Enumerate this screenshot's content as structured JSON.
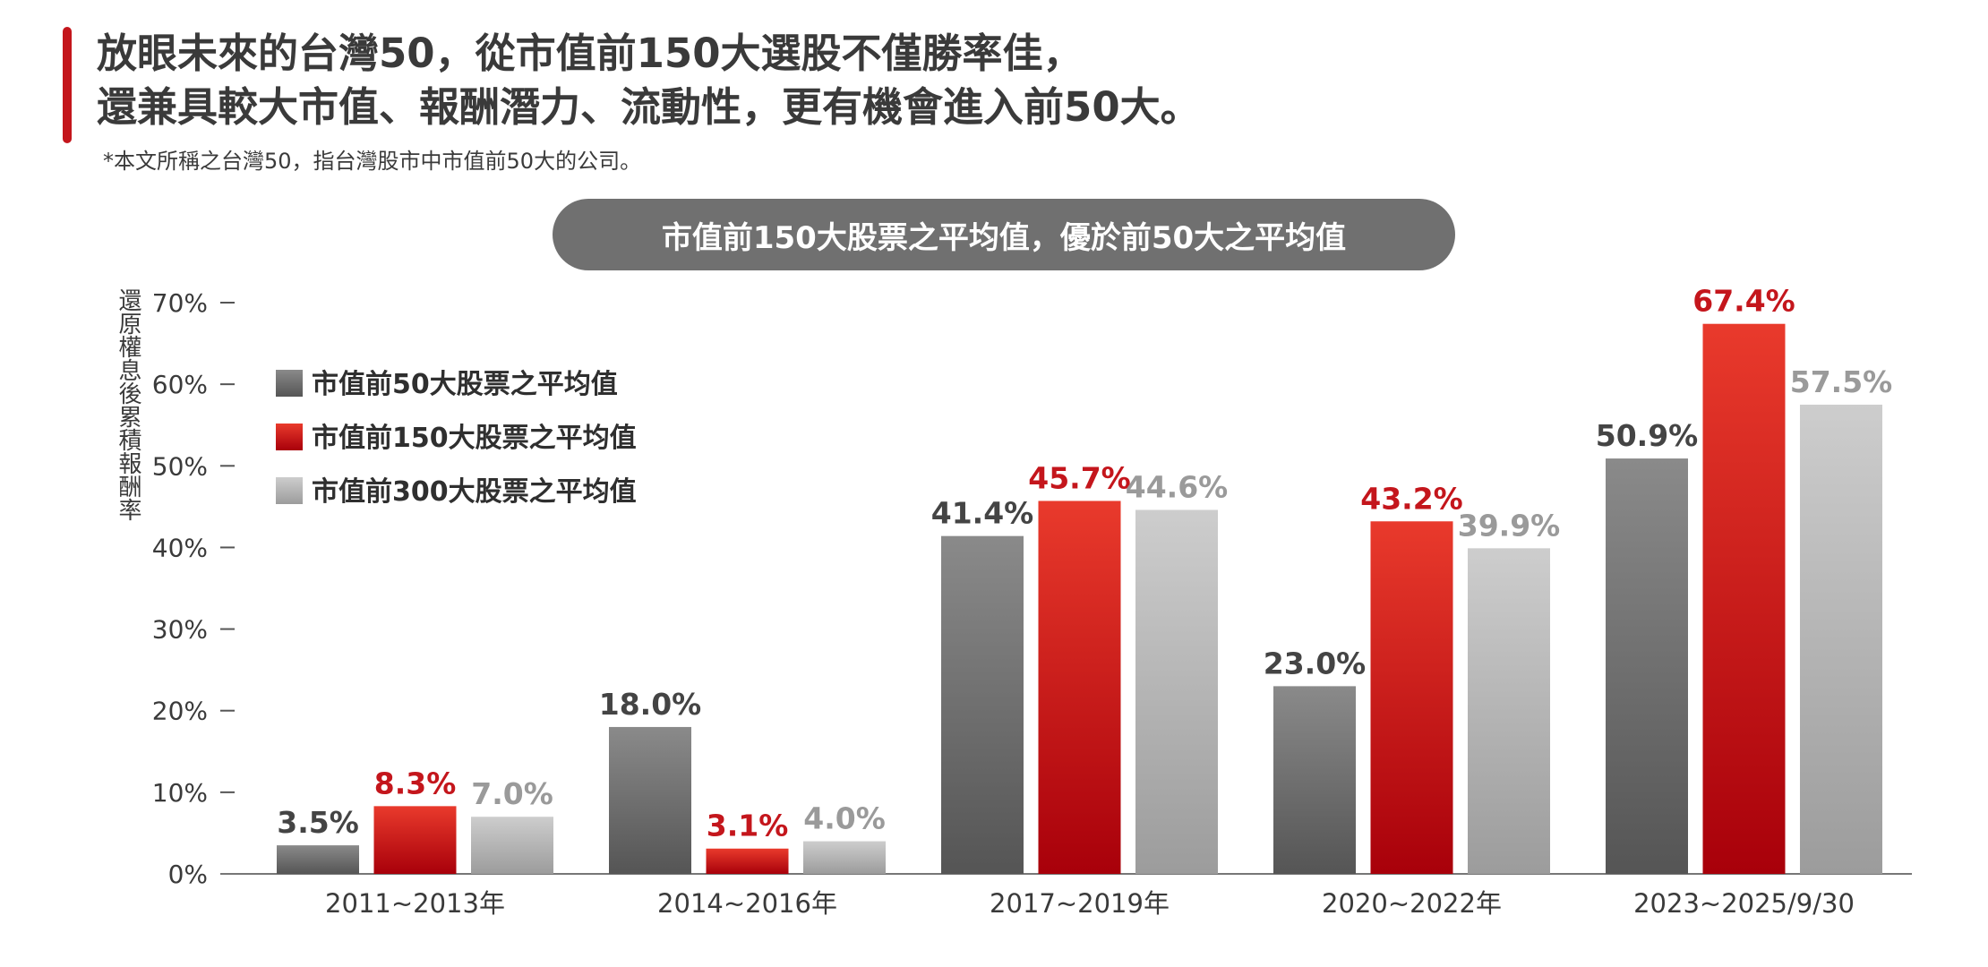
{
  "header": {
    "title_line1": "放眼未來的台灣50，從市值前150大選股不僅勝率佳，",
    "title_line2": "還兼具較大市值、報酬潛力、流動性，更有機會進入前50大。",
    "footnote": "*本文所稱之台灣50，指台灣股市中市值前50大的公司。"
  },
  "chart_data": {
    "type": "bar",
    "title": "市值前150大股票之平均值，優於前50大之平均值",
    "ylabel": "還原權息後累積報酬率",
    "xlabel": "",
    "ylim": [
      0,
      70
    ],
    "yticks": [
      "0%",
      "10%",
      "20%",
      "30%",
      "40%",
      "50%",
      "60%",
      "70%"
    ],
    "categories": [
      "2011~2013年",
      "2014~2016年",
      "2017~2019年",
      "2020~2022年",
      "2023~2025/9/30"
    ],
    "series": [
      {
        "name": "市值前50大股票之平均值",
        "values": [
          3.5,
          18.0,
          41.4,
          23.0,
          50.9
        ],
        "labels": [
          "3.5%",
          "18.0%",
          "41.4%",
          "23.0%",
          "50.9%"
        ],
        "label_color": "#444444"
      },
      {
        "name": "市值前150大股票之平均值",
        "values": [
          8.3,
          3.1,
          45.7,
          43.2,
          67.4
        ],
        "labels": [
          "8.3%",
          "3.1%",
          "45.7%",
          "43.2%",
          "67.4%"
        ],
        "label_color": "#c4161c"
      },
      {
        "name": "市值前300大股票之平均值",
        "values": [
          7.0,
          4.0,
          44.6,
          39.9,
          57.5
        ],
        "labels": [
          "7.0%",
          "4.0%",
          "44.6%",
          "39.9%",
          "57.5%"
        ],
        "label_color": "#9a9a9a"
      }
    ],
    "legend_position": "top-left",
    "grid": false,
    "colors": {
      "dark_gray": "#5a5a5a",
      "red": "#c4161c",
      "light_gray": "#b5b5b5",
      "accent": "#c4161c",
      "pill": "#707070"
    }
  }
}
